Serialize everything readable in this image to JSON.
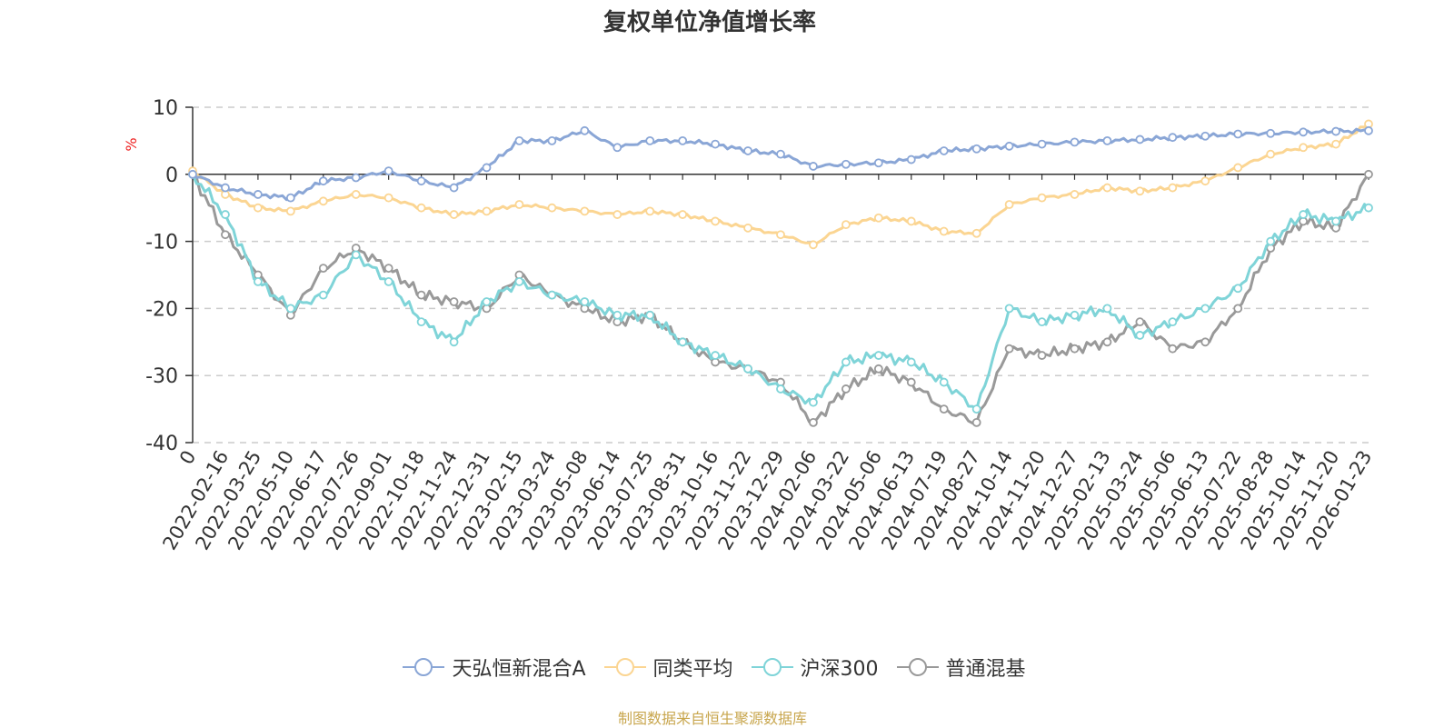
{
  "colors": {
    "fund": "#8aa6d6",
    "peer": "#fbd592",
    "hs300": "#7fd4d8",
    "mixed": "#999999",
    "grid": "#cccccc",
    "axis": "#333333",
    "unit": "#ee2222"
  },
  "chart_data": {
    "type": "line",
    "title": "复权单位净值增长率",
    "ylabel": "%",
    "ylim": [
      -40,
      10
    ],
    "y_ticks": [
      10,
      0,
      -10,
      -20,
      -30,
      -40
    ],
    "x_ticks": [
      "0",
      "2022-02-16",
      "2022-03-25",
      "2022-05-10",
      "2022-06-17",
      "2022-07-26",
      "2022-09-01",
      "2022-10-18",
      "2022-11-24",
      "2022-12-31",
      "2023-02-15",
      "2023-03-24",
      "2023-05-08",
      "2023-06-14",
      "2023-07-25",
      "2023-08-31",
      "2023-10-16",
      "2023-11-22",
      "2023-12-29",
      "2024-02-06",
      "2024-03-22",
      "2024-05-06",
      "2024-06-13",
      "2024-07-19",
      "2024-08-27",
      "2024-10-14",
      "2024-11-20",
      "2024-12-27",
      "2025-02-13",
      "2025-03-24",
      "2025-05-06",
      "2025-06-13",
      "2025-07-22",
      "2025-08-28",
      "2025-10-14",
      "2025-11-20",
      "2026-01-23"
    ],
    "source": "制图数据来自恒生聚源数据库",
    "series": [
      {
        "name": "天弘恒新混合A",
        "key": "fund",
        "values": [
          0,
          -2,
          -3,
          -3.5,
          -1,
          -0.5,
          0.5,
          -1,
          -2,
          1,
          5,
          5,
          6.5,
          4,
          5,
          5,
          4.5,
          3.5,
          3,
          1.2,
          1.5,
          1.7,
          2.2,
          3.5,
          3.8,
          4.2,
          4.5,
          4.8,
          5,
          5.2,
          5.5,
          5.7,
          6,
          6.1,
          6.3,
          6.4,
          6.5
        ]
      },
      {
        "name": "同类平均",
        "key": "peer",
        "values": [
          0.5,
          -3,
          -5,
          -5.5,
          -4,
          -3,
          -3.5,
          -5,
          -6,
          -5.5,
          -4.5,
          -5,
          -5.5,
          -6,
          -5.5,
          -6,
          -7,
          -8,
          -9,
          -10.5,
          -7.5,
          -6.5,
          -7,
          -8.5,
          -8.8,
          -4.5,
          -3.5,
          -3,
          -2,
          -2.5,
          -2,
          -1,
          1,
          3,
          4,
          4.5,
          7.5
        ]
      },
      {
        "name": "沪深300",
        "key": "hs300",
        "values": [
          0,
          -6,
          -16,
          -20,
          -18,
          -12,
          -16,
          -22,
          -25,
          -19,
          -16,
          -18,
          -19,
          -21,
          -21,
          -25,
          -27,
          -29,
          -32,
          -34,
          -28,
          -27,
          -28,
          -31,
          -35,
          -20,
          -22,
          -21,
          -20,
          -24,
          -22,
          -20,
          -17,
          -10,
          -6,
          -7,
          -5
        ]
      },
      {
        "name": "普通混基",
        "key": "mixed",
        "values": [
          0,
          -9,
          -15,
          -21,
          -14,
          -11,
          -14,
          -18,
          -19,
          -20,
          -15,
          -18,
          -20,
          -22,
          -21,
          -25,
          -28,
          -29,
          -31,
          -37,
          -32,
          -29,
          -31,
          -35,
          -37,
          -26,
          -27,
          -26,
          -25,
          -22,
          -26,
          -25,
          -20,
          -11,
          -7,
          -8,
          0
        ]
      }
    ]
  },
  "legend": [
    "天弘恒新混合A",
    "同类平均",
    "沪深300",
    "普通混基"
  ]
}
